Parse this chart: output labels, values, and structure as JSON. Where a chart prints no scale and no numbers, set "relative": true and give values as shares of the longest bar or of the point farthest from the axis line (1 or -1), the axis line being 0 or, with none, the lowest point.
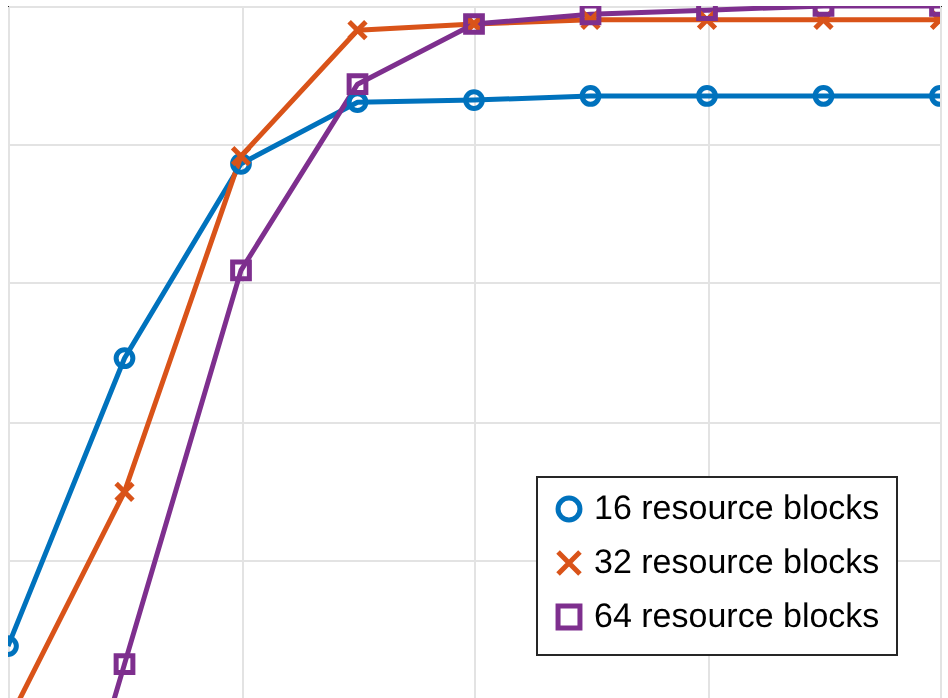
{
  "chart_data": {
    "type": "line",
    "relative": true,
    "categories": [
      null,
      null,
      null,
      null,
      null,
      null,
      null,
      null,
      null
    ],
    "series": [
      {
        "name": "16 resource blocks",
        "color": "#0072bd",
        "marker": "circle",
        "values": [
          0.075,
          0.491,
          0.772,
          0.861,
          0.864,
          0.87,
          0.87,
          0.87,
          0.87
        ]
      },
      {
        "name": "32 resource blocks",
        "color": "#d95319",
        "marker": "cross",
        "values": [
          -0.035,
          0.298,
          0.783,
          0.965,
          0.974,
          0.98,
          0.98,
          0.98,
          0.98
        ]
      },
      {
        "name": "64 resource blocks",
        "color": "#7e2f8e",
        "marker": "square",
        "values": [
          -0.52,
          0.049,
          0.618,
          0.887,
          0.974,
          0.988,
          0.994,
          1,
          1
        ]
      }
    ],
    "grid": true,
    "legend": "bottom right",
    "line_style": "solid"
  }
}
